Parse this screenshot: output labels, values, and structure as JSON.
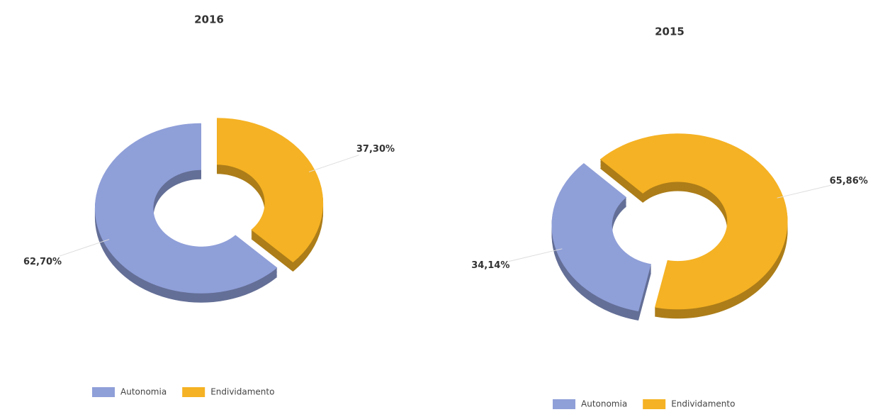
{
  "chart_data": [
    {
      "type": "donut",
      "title": "2016",
      "categories": [
        "Autonomia",
        "Endividamento"
      ],
      "values": [
        62.7,
        37.3
      ],
      "value_labels": [
        "62,70%",
        "37,30%"
      ],
      "colors": [
        "#8f9fd8",
        "#f5b224"
      ]
    },
    {
      "type": "donut",
      "title": "2015",
      "categories": [
        "Autonomia",
        "Endividamento"
      ],
      "values": [
        34.14,
        65.86
      ],
      "value_labels": [
        "34,14%",
        "65,86%"
      ],
      "colors": [
        "#8f9fd8",
        "#f5b224"
      ]
    }
  ]
}
